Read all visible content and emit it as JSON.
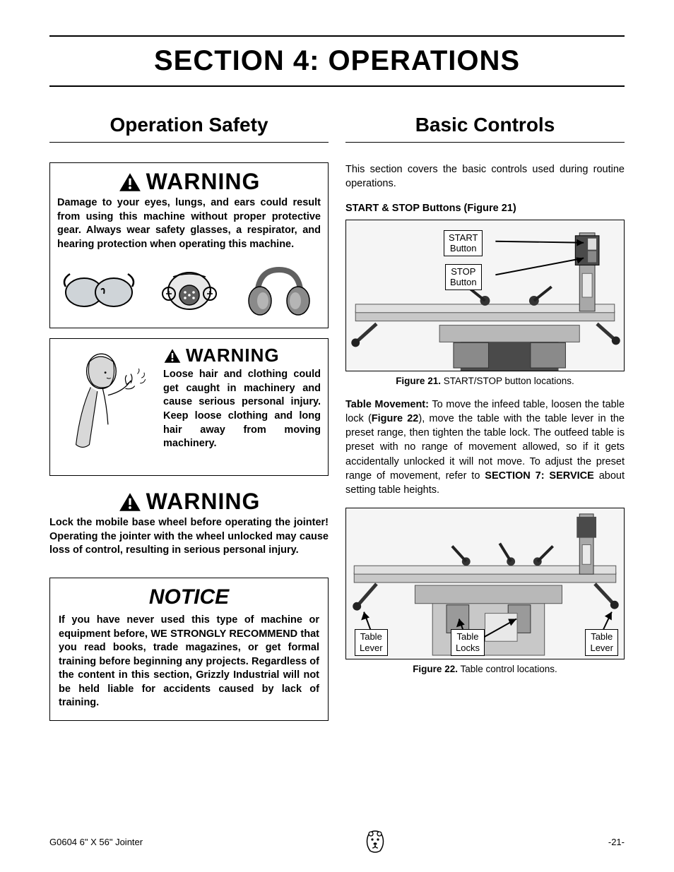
{
  "section_title": "SECTION 4: OPERATIONS",
  "left": {
    "heading": "Operation Safety",
    "warning1": {
      "label": "WARNING",
      "text": "Damage to your eyes, lungs, and ears could result from using this machine without proper protective gear. Always wear safety glasses, a respirator, and hearing protection when operating this machine."
    },
    "warning2": {
      "label": "WARNING",
      "text": "Loose hair and clothing could get caught in machinery and cause serious personal injury. Keep loose clothing and long hair away from moving machinery."
    },
    "warning3": {
      "label": "WARNING",
      "text": "Lock the mobile base wheel before operating the jointer! Operating the jointer with the wheel unlocked may cause loss of control, resulting in serious personal injury."
    },
    "notice": {
      "label": "NOTICE",
      "text": "If you have never used this type of machine or equipment before, WE STRONGLY RECOMMEND that you read books, trade magazines, or get formal training before beginning any projects. Regardless of the content in this section, Grizzly Industrial will not be held liable for accidents caused by lack of training."
    }
  },
  "right": {
    "heading": "Basic Controls",
    "intro": "This section covers the basic controls used during routine operations.",
    "fig21_heading_a": "START & STOP Buttons",
    "fig21_heading_b": "Figure 21",
    "fig21": {
      "start_label": "START\nButton",
      "stop_label": "STOP\nButton",
      "caption_bold": "Figure 21.",
      "caption_rest": " START/STOP button locations."
    },
    "table_movement": {
      "label": "Table Movement:",
      "text_a": " To move the infeed table, loosen the table lock (",
      "fig_ref": "Figure 22",
      "text_b": "), move the table with the table lever in the preset range, then tighten the table lock. The outfeed table is preset with no range of movement allowed, so if it gets accidentally unlocked it will not move. To adjust the preset range of movement, refer to ",
      "section_ref": "SECTION 7: SERVICE",
      "text_c": " about setting table heights."
    },
    "fig22": {
      "lever_left": "Table\nLever",
      "locks": "Table\nLocks",
      "lever_right": "Table\nLever",
      "caption_bold": "Figure 22.",
      "caption_rest": " Table control locations."
    }
  },
  "footer": {
    "left": "G0604 6\" X 56\" Jointer",
    "right": "-21-"
  },
  "colors": {
    "bg": "#ffffff",
    "text": "#000000",
    "fig_bg": "#f5f5f5",
    "machine_body": "#c8c8c8",
    "machine_dark": "#4a4a4a"
  }
}
